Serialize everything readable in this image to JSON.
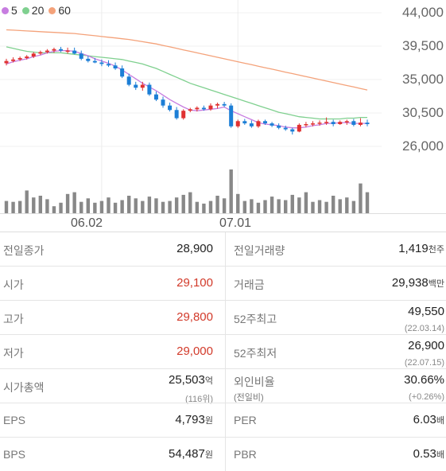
{
  "legend": [
    {
      "label": "5",
      "color": "#c77de0"
    },
    {
      "label": "20",
      "color": "#7fd08f"
    },
    {
      "label": "60",
      "color": "#f4a27a"
    }
  ],
  "chart_data": {
    "type": "candlestick",
    "y_ticks": [
      "44,000",
      "39,500",
      "35,000",
      "30,500",
      "26,000"
    ],
    "ylim": [
      26000,
      44000
    ],
    "x_ticks": [
      {
        "label": "06.02",
        "index": 14
      },
      {
        "label": "07.01",
        "index": 34
      }
    ],
    "candles": [
      [
        37200,
        37800,
        36900,
        37500
      ],
      [
        37500,
        38000,
        37300,
        37700
      ],
      [
        37700,
        38100,
        37500,
        37900
      ],
      [
        37900,
        38300,
        37700,
        38100
      ],
      [
        38100,
        38700,
        37900,
        38500
      ],
      [
        38500,
        38900,
        38300,
        38700
      ],
      [
        38700,
        39100,
        38500,
        38900
      ],
      [
        38900,
        39300,
        38600,
        39100
      ],
      [
        39100,
        39400,
        38700,
        38900
      ],
      [
        38900,
        39300,
        38500,
        38900
      ],
      [
        38900,
        39300,
        38400,
        38500
      ],
      [
        38500,
        38900,
        37600,
        37800
      ],
      [
        37800,
        38200,
        37300,
        37500
      ],
      [
        37500,
        37900,
        37200,
        37300
      ],
      [
        37300,
        37700,
        36800,
        37100
      ],
      [
        37100,
        37600,
        36700,
        36900
      ],
      [
        36900,
        37300,
        36300,
        36500
      ],
      [
        36500,
        36900,
        35200,
        35400
      ],
      [
        35400,
        35800,
        34100,
        34300
      ],
      [
        34300,
        34700,
        33600,
        33900
      ],
      [
        33900,
        34700,
        33500,
        34300
      ],
      [
        34300,
        34600,
        32800,
        33000
      ],
      [
        33000,
        33400,
        32100,
        32300
      ],
      [
        32300,
        32700,
        31200,
        31500
      ],
      [
        31500,
        31900,
        30700,
        30900
      ],
      [
        30900,
        31300,
        29600,
        29800
      ],
      [
        29800,
        31000,
        29600,
        30800
      ],
      [
        30800,
        31200,
        30600,
        31000
      ],
      [
        31000,
        31400,
        30700,
        31200
      ],
      [
        31200,
        31500,
        30800,
        31000
      ],
      [
        31000,
        31800,
        30800,
        31500
      ],
      [
        31500,
        31900,
        31100,
        31700
      ],
      [
        31700,
        32000,
        31300,
        31500
      ],
      [
        31500,
        31800,
        28500,
        28700
      ],
      [
        28700,
        29600,
        28500,
        29400
      ],
      [
        29400,
        29700,
        28900,
        29100
      ],
      [
        29100,
        29500,
        28500,
        28700
      ],
      [
        28700,
        29600,
        28500,
        29400
      ],
      [
        29400,
        29600,
        28900,
        29100
      ],
      [
        29100,
        29300,
        28600,
        28800
      ],
      [
        28800,
        29100,
        28300,
        28500
      ],
      [
        28500,
        28800,
        28100,
        28300
      ],
      [
        28300,
        28500,
        27600,
        28000
      ],
      [
        28000,
        29100,
        27900,
        28900
      ],
      [
        28900,
        29300,
        28600,
        29000
      ],
      [
        29000,
        29400,
        28700,
        29100
      ],
      [
        29100,
        29500,
        28800,
        29200
      ],
      [
        29200,
        29900,
        28900,
        29300
      ],
      [
        29300,
        29600,
        28700,
        29000
      ],
      [
        29000,
        29500,
        28900,
        29300
      ],
      [
        29300,
        29600,
        28900,
        29400
      ],
      [
        29400,
        29700,
        28700,
        28900
      ],
      [
        28900,
        29800,
        28700,
        29200
      ],
      [
        29200,
        29600,
        28700,
        29000
      ]
    ],
    "ma5": [
      37100,
      37400,
      37600,
      37800,
      38100,
      38300,
      38600,
      38800,
      38900,
      38900,
      38800,
      38500,
      38200,
      37800,
      37500,
      37200,
      36800,
      36300,
      35700,
      35100,
      34500,
      34000,
      33500,
      32900,
      32300,
      31800,
      31300,
      30900,
      30800,
      30900,
      31000,
      31100,
      31300,
      30800,
      30400,
      30000,
      29600,
      29200,
      29000,
      28900,
      28800,
      28600,
      28500,
      28500,
      28600,
      28800,
      28900,
      29100,
      29100,
      29200,
      29200,
      29100,
      29100,
      29100
    ],
    "ma20": [
      39400,
      39200,
      39000,
      38800,
      38700,
      38600,
      38600,
      38600,
      38600,
      38500,
      38400,
      38300,
      38200,
      38100,
      38000,
      37900,
      37800,
      37700,
      37500,
      37300,
      37100,
      36800,
      36500,
      36100,
      35700,
      35300,
      34900,
      34500,
      34200,
      33900,
      33600,
      33300,
      33000,
      32700,
      32400,
      32100,
      31800,
      31500,
      31200,
      30900,
      30600,
      30400,
      30200,
      30000,
      29900,
      29800,
      29700,
      29700,
      29700,
      29700,
      29800,
      29800,
      29900,
      29900
    ],
    "ma60": [
      41700,
      41650,
      41600,
      41550,
      41500,
      41450,
      41400,
      41350,
      41300,
      41250,
      41200,
      41100,
      41000,
      40900,
      40800,
      40700,
      40600,
      40500,
      40400,
      40250,
      40100,
      39950,
      39800,
      39600,
      39400,
      39200,
      39000,
      38800,
      38600,
      38400,
      38200,
      38000,
      37800,
      37600,
      37400,
      37200,
      37000,
      36800,
      36600,
      36400,
      36200,
      36000,
      35800,
      35600,
      35400,
      35200,
      35000,
      34800,
      34600,
      34400,
      34200,
      34000,
      33800,
      33600
    ],
    "volume": [
      14,
      13,
      14,
      26,
      18,
      20,
      16,
      8,
      12,
      22,
      24,
      13,
      17,
      12,
      14,
      18,
      12,
      15,
      20,
      17,
      14,
      19,
      17,
      13,
      14,
      18,
      21,
      24,
      13,
      11,
      14,
      20,
      17,
      50,
      22,
      14,
      16,
      12,
      15,
      19,
      16,
      15,
      21,
      18,
      24,
      13,
      15,
      13,
      20,
      16,
      18,
      14,
      34,
      24
    ]
  },
  "stats": [
    {
      "left": {
        "label": "전일종가",
        "value": "28,900",
        "unit": "",
        "red": false
      },
      "right": {
        "label": "전일거래량",
        "value": "1,419",
        "unit": "천주"
      }
    },
    {
      "left": {
        "label": "시가",
        "value": "29,100",
        "unit": "",
        "red": true
      },
      "right": {
        "label": "거래금",
        "value": "29,938",
        "unit": "백만"
      }
    },
    {
      "left": {
        "label": "고가",
        "value": "29,800",
        "unit": "",
        "red": true
      },
      "right": {
        "label": "52주최고",
        "value": "49,550",
        "unit": "",
        "sub": "(22.03.14)"
      }
    },
    {
      "left": {
        "label": "저가",
        "value": "29,000",
        "unit": "",
        "red": true
      },
      "right": {
        "label": "52주최저",
        "value": "26,900",
        "unit": "",
        "sub": "(22.07.15)"
      }
    },
    {
      "left": {
        "label": "시가총액",
        "value": "25,503",
        "unit": "억",
        "red": false,
        "sub": "(116위)"
      },
      "right": {
        "label": "외인비율",
        "value": "30.66%",
        "unit": "",
        "sub": "(+0.26%)",
        "labelsub": "(전일비)"
      }
    },
    {
      "left": {
        "label": "EPS",
        "value": "4,793",
        "unit": "원",
        "red": false
      },
      "right": {
        "label": "PER",
        "value": "6.03",
        "unit": "배"
      }
    },
    {
      "left": {
        "label": "BPS",
        "value": "54,487",
        "unit": "원",
        "red": false
      },
      "right": {
        "label": "PBR",
        "value": "0.53",
        "unit": "배"
      }
    }
  ]
}
